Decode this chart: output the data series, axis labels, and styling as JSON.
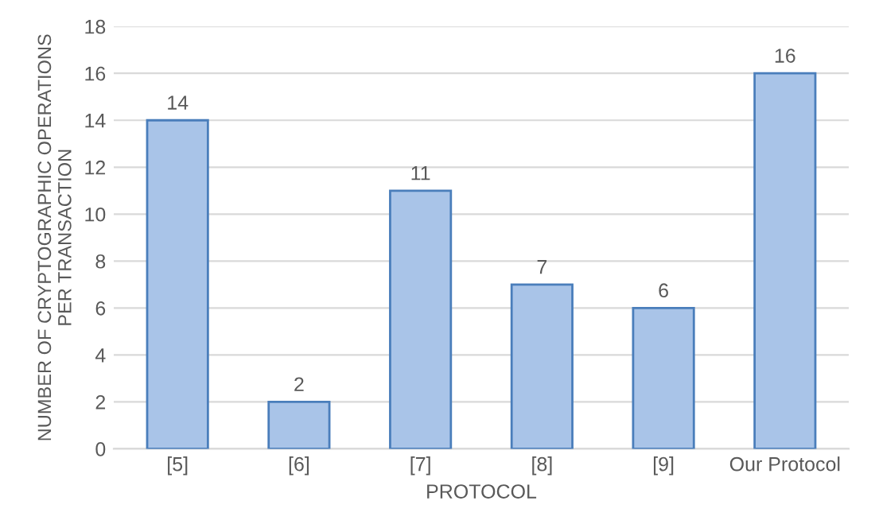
{
  "chart_data": {
    "type": "bar",
    "xlabel": "PROTOCOL",
    "ylabel": "NUMBER OF CRYPTOGRAPHIC OPERATIONS\nPER TRANSACTION",
    "categories": [
      "[5]",
      "[6]",
      "[7]",
      "[8]",
      "[9]",
      "Our Protocol"
    ],
    "values": [
      14,
      2,
      11,
      7,
      6,
      16
    ],
    "color": "#a9c4e8",
    "ylim": [
      0,
      18
    ],
    "yticks": [
      0,
      2,
      4,
      6,
      8,
      10,
      12,
      14,
      16,
      18
    ],
    "grid": "y",
    "data_labels": true
  }
}
